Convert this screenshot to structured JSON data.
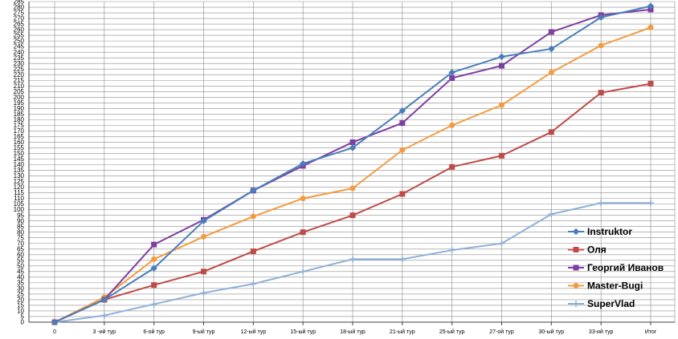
{
  "chart_data": {
    "type": "line",
    "categories": [
      "0",
      "3 -ий тур",
      "6-ой тур",
      "9-ый тур",
      "12-ый тур",
      "15-ый тур",
      "18-ый тур",
      "21-ый тур",
      "25-ый тур",
      "27-ой тур",
      "30-ый тур",
      "33-ий тур",
      "Итог"
    ],
    "ylim": [
      0,
      285
    ],
    "ytick_step": 5,
    "grid": true,
    "legend_position": "right",
    "series": [
      {
        "name": "Instruktor",
        "color": "#4a7ebb",
        "marker": "diamond",
        "values": [
          0,
          20,
          48,
          90,
          117,
          141,
          155,
          188,
          222,
          236,
          243,
          271,
          281
        ]
      },
      {
        "name": "Оля",
        "color": "#be4b48",
        "marker": "square",
        "values": [
          0,
          20,
          33,
          45,
          63,
          80,
          95,
          114,
          138,
          148,
          169,
          204,
          212
        ]
      },
      {
        "name": "Георгий Иванов",
        "color": "#7d3fa0",
        "marker": "square",
        "values": [
          0,
          20,
          69,
          91,
          117,
          139,
          160,
          177,
          217,
          228,
          258,
          273,
          278
        ]
      },
      {
        "name": "Master-Bugi",
        "color": "#f39b3f",
        "marker": "circle",
        "values": [
          0,
          22,
          56,
          76,
          94,
          110,
          119,
          153,
          175,
          193,
          222,
          246,
          262
        ]
      },
      {
        "name": "SuperVlad",
        "color": "#8fb0d8",
        "marker": "plus",
        "values": [
          0,
          6,
          16,
          26,
          34,
          45,
          56,
          56,
          64,
          70,
          96,
          106,
          106
        ]
      }
    ]
  }
}
